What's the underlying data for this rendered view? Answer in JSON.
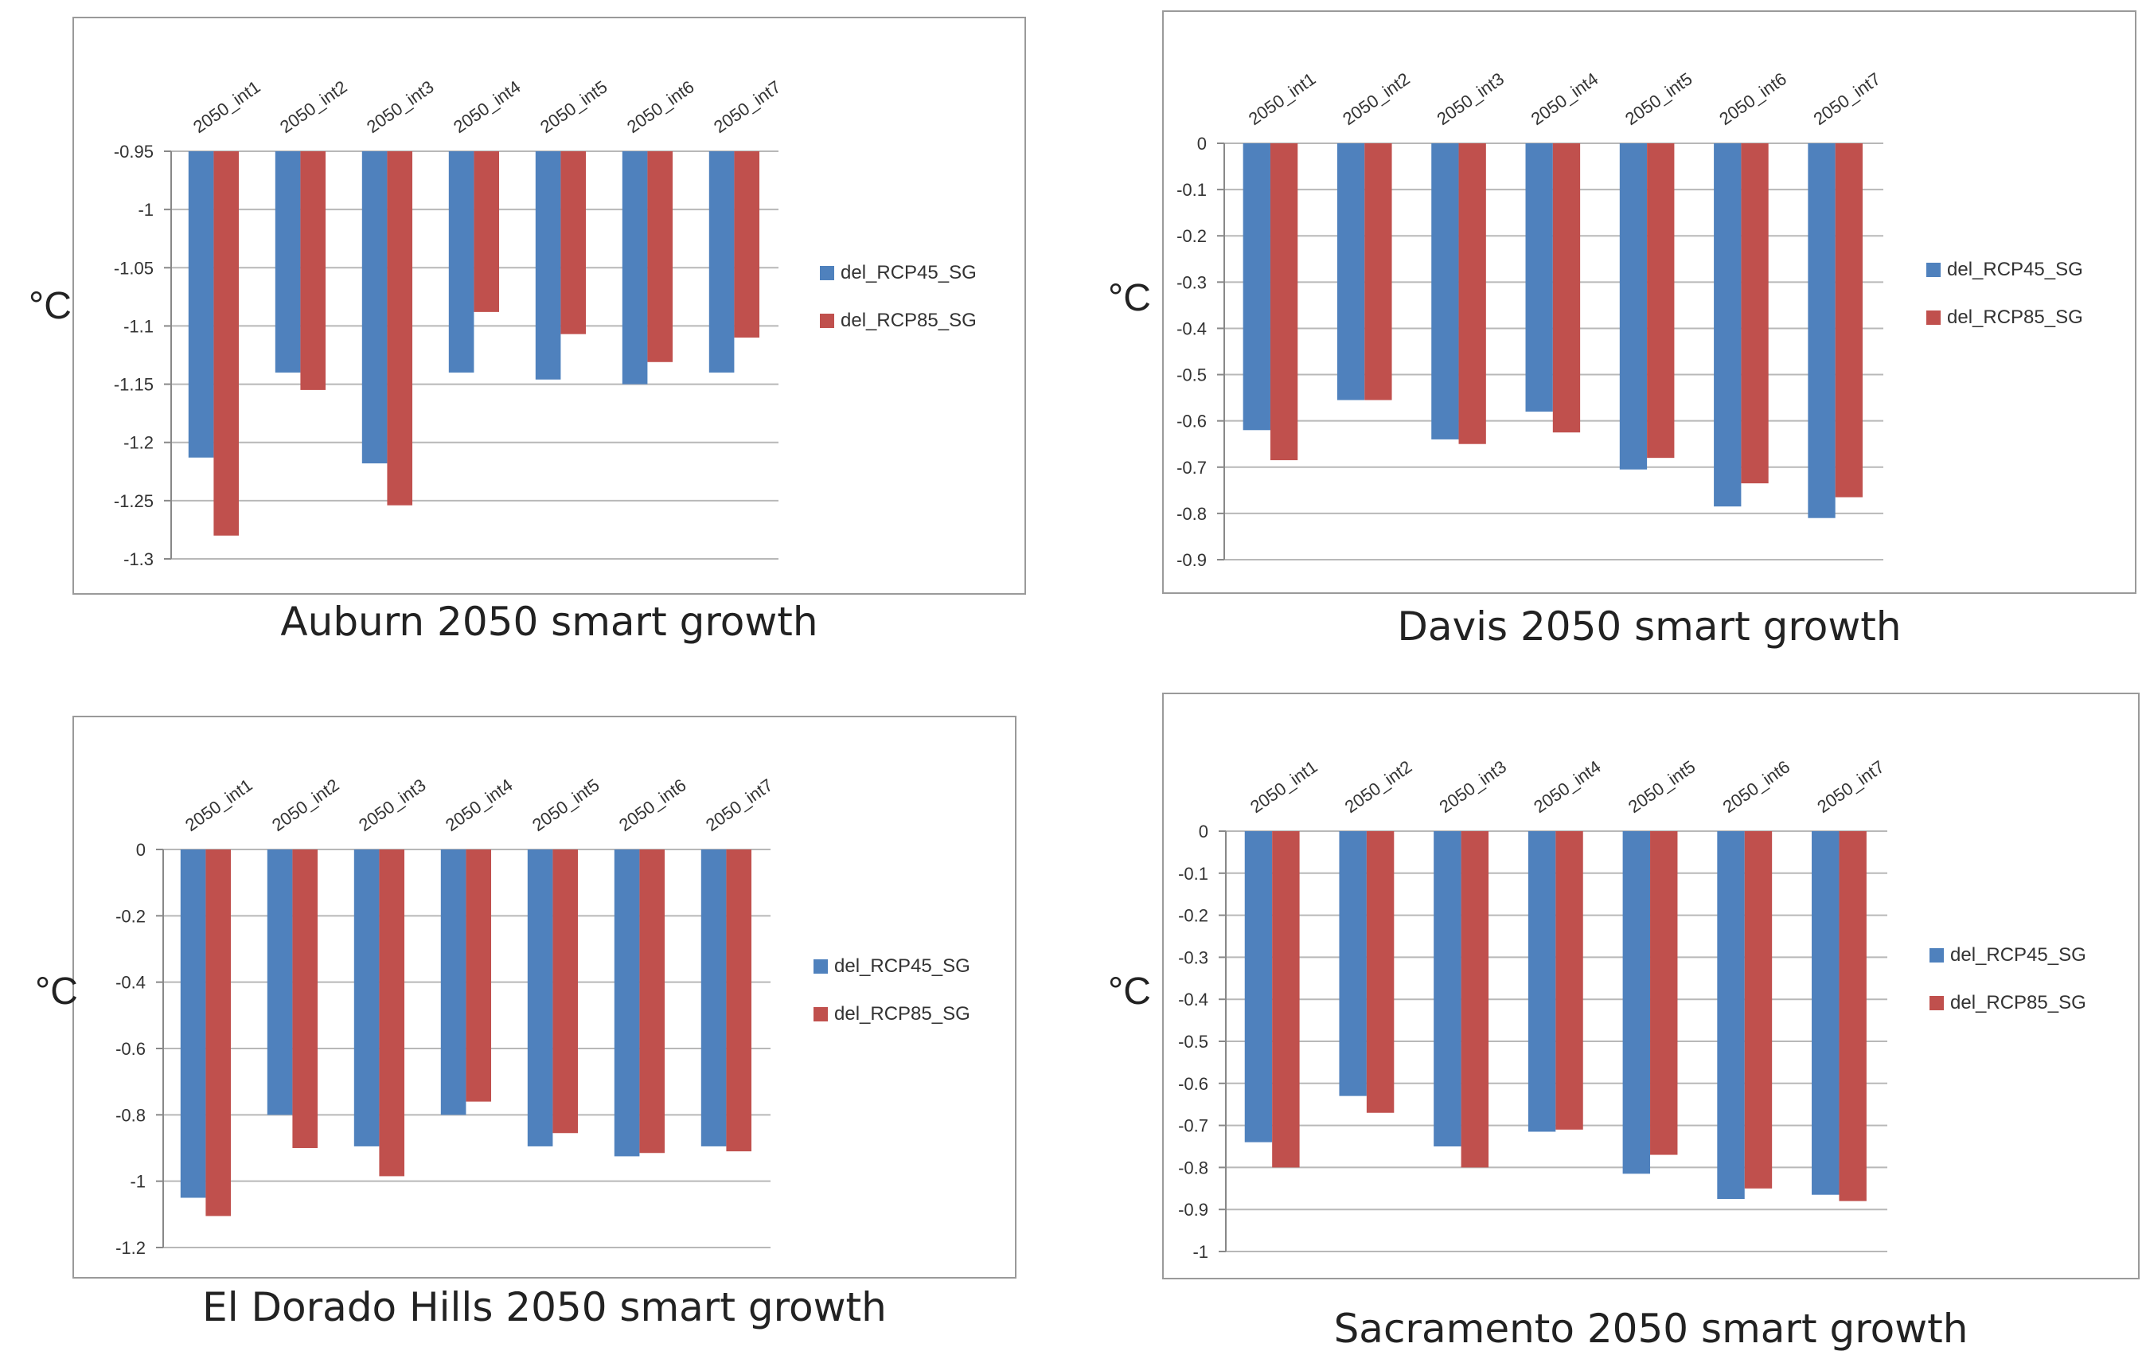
{
  "chart_data": [
    {
      "type": "bar",
      "title": "Auburn 2050 smart growth",
      "ylabel": "°C",
      "categories": [
        "2050_int1",
        "2050_int2",
        "2050_int3",
        "2050_int4",
        "2050_int5",
        "2050_int6",
        "2050_int7"
      ],
      "series": [
        {
          "name": "del_RCP45_SG",
          "color": "#4f81bd",
          "values": [
            -1.213,
            -1.14,
            -1.218,
            -1.14,
            -1.146,
            -1.15,
            -1.14
          ]
        },
        {
          "name": "del_RCP85_SG",
          "color": "#c0504d",
          "values": [
            -1.28,
            -1.155,
            -1.254,
            -1.088,
            -1.107,
            -1.131,
            -1.11
          ]
        }
      ],
      "ylim": [
        -1.3,
        -0.95
      ],
      "yticks": [
        -0.95,
        -1,
        -1.05,
        -1.1,
        -1.15,
        -1.2,
        -1.25,
        -1.3
      ],
      "ytick_labels": [
        "-0.95",
        "-1",
        "-1.05",
        "-1.1",
        "-1.15",
        "-1.2",
        "-1.25",
        "-1.3"
      ],
      "grid": true,
      "legend": "right"
    },
    {
      "type": "bar",
      "title": "Davis 2050 smart growth",
      "ylabel": "°C",
      "categories": [
        "2050_int1",
        "2050_int2",
        "2050_int3",
        "2050_int4",
        "2050_int5",
        "2050_int6",
        "2050_int7"
      ],
      "series": [
        {
          "name": "del_RCP45_SG",
          "color": "#4f81bd",
          "values": [
            -0.62,
            -0.555,
            -0.64,
            -0.58,
            -0.705,
            -0.785,
            -0.81
          ]
        },
        {
          "name": "del_RCP85_SG",
          "color": "#c0504d",
          "values": [
            -0.685,
            -0.555,
            -0.65,
            -0.625,
            -0.68,
            -0.735,
            -0.765
          ]
        }
      ],
      "ylim": [
        -0.9,
        0
      ],
      "yticks": [
        0,
        -0.1,
        -0.2,
        -0.3,
        -0.4,
        -0.5,
        -0.6,
        -0.7,
        -0.8,
        -0.9
      ],
      "ytick_labels": [
        "0",
        "-0.1",
        "-0.2",
        "-0.3",
        "-0.4",
        "-0.5",
        "-0.6",
        "-0.7",
        "-0.8",
        "-0.9"
      ],
      "grid": true,
      "legend": "right"
    },
    {
      "type": "bar",
      "title": "El Dorado Hills 2050 smart growth",
      "ylabel": "°C",
      "categories": [
        "2050_int1",
        "2050_int2",
        "2050_int3",
        "2050_int4",
        "2050_int5",
        "2050_int6",
        "2050_int7"
      ],
      "series": [
        {
          "name": "del_RCP45_SG",
          "color": "#4f81bd",
          "values": [
            -1.05,
            -0.8,
            -0.895,
            -0.8,
            -0.895,
            -0.925,
            -0.895
          ]
        },
        {
          "name": "del_RCP85_SG",
          "color": "#c0504d",
          "values": [
            -1.105,
            -0.9,
            -0.985,
            -0.76,
            -0.855,
            -0.915,
            -0.91
          ]
        }
      ],
      "ylim": [
        -1.2,
        0
      ],
      "yticks": [
        0,
        -0.2,
        -0.4,
        -0.6,
        -0.8,
        -1,
        -1.2
      ],
      "ytick_labels": [
        "0",
        "-0.2",
        "-0.4",
        "-0.6",
        "-0.8",
        "-1",
        "-1.2"
      ],
      "grid": true,
      "legend": "right"
    },
    {
      "type": "bar",
      "title": "Sacramento 2050 smart growth",
      "ylabel": "°C",
      "categories": [
        "2050_int1",
        "2050_int2",
        "2050_int3",
        "2050_int4",
        "2050_int5",
        "2050_int6",
        "2050_int7"
      ],
      "series": [
        {
          "name": "del_RCP45_SG",
          "color": "#4f81bd",
          "values": [
            -0.74,
            -0.63,
            -0.75,
            -0.715,
            -0.815,
            -0.875,
            -0.865
          ]
        },
        {
          "name": "del_RCP85_SG",
          "color": "#c0504d",
          "values": [
            -0.8,
            -0.67,
            -0.8,
            -0.71,
            -0.77,
            -0.85,
            -0.88
          ]
        }
      ],
      "ylim": [
        -1,
        0
      ],
      "yticks": [
        0,
        -0.1,
        -0.2,
        -0.3,
        -0.4,
        -0.5,
        -0.6,
        -0.7,
        -0.8,
        -0.9,
        -1
      ],
      "ytick_labels": [
        "0",
        "-0.1",
        "-0.2",
        "-0.3",
        "-0.4",
        "-0.5",
        "-0.6",
        "-0.7",
        "-0.8",
        "-0.9",
        "-1"
      ],
      "grid": true,
      "legend": "right"
    }
  ]
}
